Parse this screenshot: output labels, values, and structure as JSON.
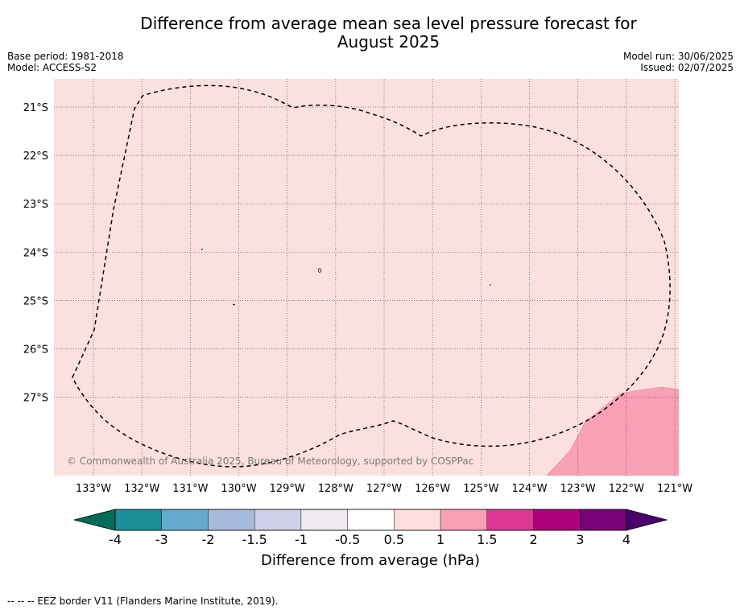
{
  "title": "Difference from average mean sea level pressure forecast for",
  "title_line2": "August 2025",
  "base_period": "Base period: 1981-2018",
  "model": "Model: ACCESS-S2",
  "model_run": "Model run: 30/06/2025",
  "issued": "Issued: 02/07/2025",
  "copyright": "© Commonwealth of Australia 2025, Bureau of Meteorology, supported by COSPPac",
  "footnote": "--  --  -- EEZ border V11 (Flanders Marine Institute, 2019).",
  "colorbar": {
    "label": "Difference from average (hPa)",
    "tick_labels": [
      "-4",
      "-3",
      "-2",
      "-1.5",
      "-1",
      "-0.5",
      "0.5",
      "1",
      "1.5",
      "2",
      "3",
      "4"
    ],
    "colors": [
      "#1b8f98",
      "#66aad0",
      "#a6badb",
      "#cfd2e8",
      "#efe9f1",
      "#ffffff",
      "#fde0de",
      "#f9a0b6",
      "#de3896",
      "#b0017c",
      "#7a0177"
    ],
    "under_color": "#016c59",
    "over_color": "#49006a"
  },
  "map": {
    "background_anomaly_category": "0.5 to 1",
    "background_color": "#fce0dd",
    "high_anomaly_category": "1 to 1.5",
    "high_anomaly_color": "#f9a0b6",
    "lon_labels": [
      "133°W",
      "132°W",
      "131°W",
      "130°W",
      "129°W",
      "128°W",
      "127°W",
      "126°W",
      "125°W",
      "124°W",
      "123°W",
      "122°W",
      "121°W"
    ],
    "lat_labels": [
      "21°S",
      "22°S",
      "23°S",
      "24°S",
      "25°S",
      "26°S",
      "27°S"
    ]
  }
}
